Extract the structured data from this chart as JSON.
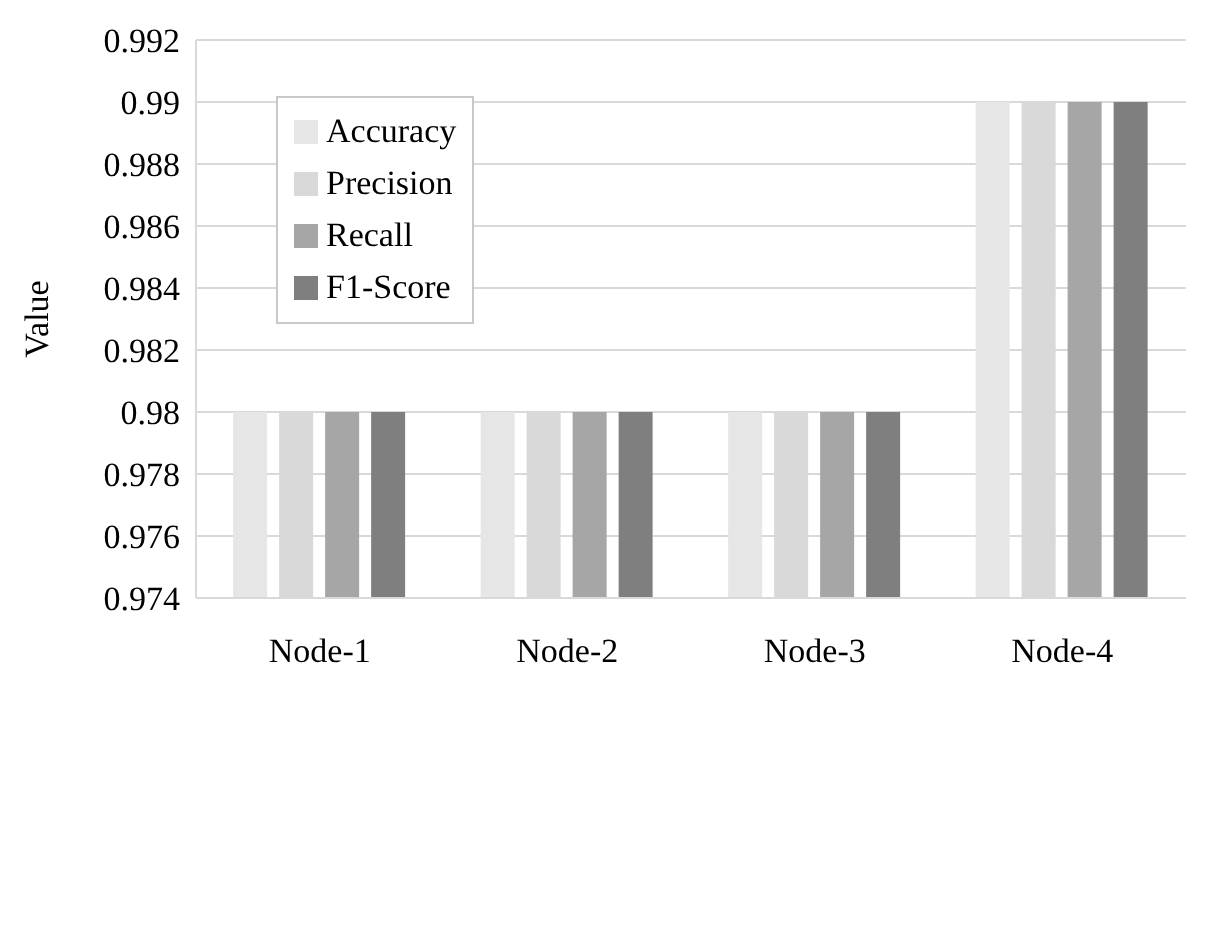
{
  "chart_data": {
    "type": "bar",
    "ylabel": "Value",
    "categories": [
      "Node-1",
      "Node-2",
      "Node-3",
      "Node-4"
    ],
    "series": [
      {
        "name": "Accuracy",
        "color": "#e6e6e6",
        "values": [
          0.98,
          0.98,
          0.98,
          0.99
        ]
      },
      {
        "name": "Precision",
        "color": "#d9d9d9",
        "values": [
          0.98,
          0.98,
          0.98,
          0.99
        ]
      },
      {
        "name": "Recall",
        "color": "#a6a6a6",
        "values": [
          0.98,
          0.98,
          0.98,
          0.99
        ]
      },
      {
        "name": "F1-Score",
        "color": "#7f7f7f",
        "values": [
          0.98,
          0.98,
          0.98,
          0.99
        ]
      }
    ],
    "ylim": [
      0.974,
      0.992
    ],
    "yticks": [
      0.974,
      0.976,
      0.978,
      0.98,
      0.982,
      0.984,
      0.986,
      0.988,
      0.99,
      0.992
    ],
    "grid": "y",
    "legend": "top left"
  }
}
